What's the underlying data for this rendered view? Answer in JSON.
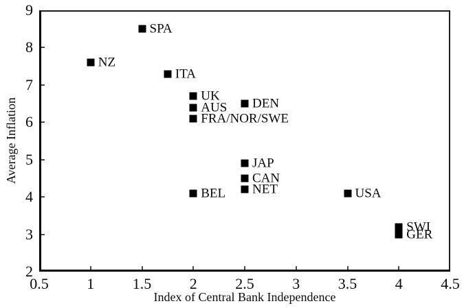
{
  "chart_data": {
    "type": "scatter",
    "title": "",
    "xlabel": "Index of Central Bank Independence",
    "ylabel": "Average Inflation",
    "xlim": [
      0.5,
      4.5
    ],
    "ylim": [
      2,
      9
    ],
    "x_ticks": [
      0.5,
      1,
      1.5,
      2,
      2.5,
      3,
      3.5,
      4,
      4.5
    ],
    "y_ticks": [
      2,
      3,
      4,
      5,
      6,
      7,
      8,
      9
    ],
    "grid": false,
    "legend": "none",
    "marker_style": "filled-black-square",
    "colors": {
      "marker": "#000000",
      "axis": "#000000",
      "text": "#0a0a0a",
      "background": "#ffffff"
    },
    "points": [
      {
        "label": "SPA",
        "x": 1.5,
        "y": 8.5
      },
      {
        "label": "NZ",
        "x": 1.0,
        "y": 7.6
      },
      {
        "label": "ITA",
        "x": 1.75,
        "y": 7.3
      },
      {
        "label": "UK",
        "x": 2.0,
        "y": 6.7
      },
      {
        "label": "DEN",
        "x": 2.5,
        "y": 6.5
      },
      {
        "label": "AUS",
        "x": 2.0,
        "y": 6.4
      },
      {
        "label": "FRA/NOR/SWE",
        "x": 2.0,
        "y": 6.1
      },
      {
        "label": "JAP",
        "x": 2.5,
        "y": 4.9
      },
      {
        "label": "CAN",
        "x": 2.5,
        "y": 4.5
      },
      {
        "label": "NET",
        "x": 2.5,
        "y": 4.2
      },
      {
        "label": "BEL",
        "x": 2.0,
        "y": 4.1
      },
      {
        "label": "USA",
        "x": 3.5,
        "y": 4.1
      },
      {
        "label": "SWI",
        "x": 4.0,
        "y": 3.2
      },
      {
        "label": "GER",
        "x": 4.0,
        "y": 3.0
      }
    ]
  }
}
